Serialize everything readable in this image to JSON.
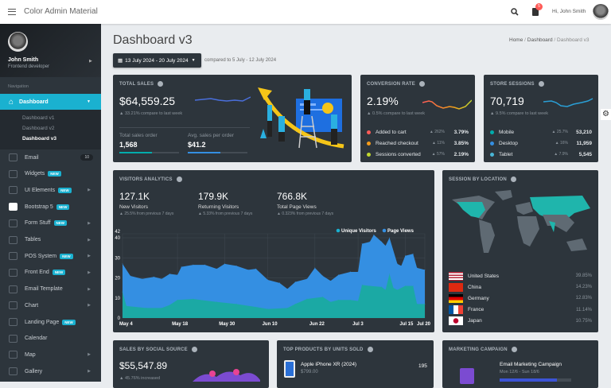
{
  "header": {
    "app_title": "Color Admin Material",
    "notification_count": "5",
    "greeting": "Hi, John Smith"
  },
  "sidebar": {
    "user_name": "John Smith",
    "user_role": "Frontend developer",
    "nav_label": "Navigation",
    "active": "Dashboard",
    "sub": [
      "Dashboard v1",
      "Dashboard v2",
      "Dashboard v3"
    ],
    "items": [
      {
        "label": "Email",
        "count": "10",
        "icon": "email-icon"
      },
      {
        "label": "Widgets",
        "badge": "NEW",
        "icon": "puzzle-icon"
      },
      {
        "label": "UI Elements",
        "badge": "NEW",
        "caret": true,
        "icon": "gem-icon"
      },
      {
        "label": "Bootstrap 5",
        "badge": "NEW",
        "icon": "bootstrap-icon"
      },
      {
        "label": "Form Stuff",
        "badge": "NEW",
        "caret": true,
        "icon": "file-icon"
      },
      {
        "label": "Tables",
        "caret": true,
        "icon": "table-icon"
      },
      {
        "label": "POS System",
        "badge": "NEW",
        "caret": true,
        "icon": "cash-register-icon"
      },
      {
        "label": "Front End",
        "badge": "NEW",
        "caret": true,
        "icon": "code-icon"
      },
      {
        "label": "Email Template",
        "caret": true,
        "icon": "envelope-icon"
      },
      {
        "label": "Chart",
        "caret": true,
        "icon": "chart-icon"
      },
      {
        "label": "Landing Page",
        "badge": "NEW",
        "icon": "user-icon"
      },
      {
        "label": "Calendar",
        "icon": "calendar-icon"
      },
      {
        "label": "Map",
        "caret": true,
        "icon": "map-marker-icon"
      },
      {
        "label": "Gallery",
        "caret": true,
        "icon": "image-icon"
      }
    ]
  },
  "page": {
    "title": "Dashboard v3",
    "breadcrumb": [
      "Home",
      "Dashboard",
      "Dashboard v3"
    ],
    "date_range": "13 July 2024 - 20 July 2024",
    "compare": "compared to 5 July - 12 July 2024"
  },
  "total_sales": {
    "title": "TOTAL SALES",
    "value": "$64,559.25",
    "change": "33.21% compare to last week",
    "orders_label": "Total sales order",
    "orders": "1,568",
    "orders_progress": 55,
    "avg_label": "Avg. sales per order",
    "avg": "$41.2",
    "avg_progress": 55
  },
  "conversion": {
    "title": "CONVERSION RATE",
    "value": "2.19%",
    "change": "0.5% compare to last week",
    "rows": [
      {
        "label": "Added to cart",
        "change": "262%",
        "value": "3.79%",
        "color": "#ff5b57"
      },
      {
        "label": "Reached checkout",
        "change": "11%",
        "value": "3.85%",
        "color": "#f59c1a"
      },
      {
        "label": "Sessions converted",
        "change": "57%",
        "value": "2.19%",
        "color": "#c1d82f"
      }
    ]
  },
  "sessions": {
    "title": "STORE SESSIONS",
    "value": "70,719",
    "change": "9.5% compare to last week",
    "rows": [
      {
        "label": "Mobile",
        "change": "25.7%",
        "value": "53,210",
        "color": "#00acac"
      },
      {
        "label": "Desktop",
        "change": "16%",
        "value": "11,959",
        "color": "#348fe2"
      },
      {
        "label": "Tablet",
        "change": "7.9%",
        "value": "5,545",
        "color": "#49b6d6"
      }
    ]
  },
  "visitors": {
    "title": "VISITORS ANALYTICS",
    "stats": [
      {
        "value": "127.1K",
        "label": "New Visitors",
        "change": "25.5% from previous 7 days"
      },
      {
        "value": "179.9K",
        "label": "Returning Visitors",
        "change": "5.33% from previous 7 days"
      },
      {
        "value": "766.8K",
        "label": "Total Page Views",
        "change": "0.323% from previous 7 days"
      }
    ]
  },
  "chart_data": {
    "type": "area",
    "ylim": [
      0,
      42
    ],
    "yticks": [
      0,
      10,
      20,
      30,
      40,
      42
    ],
    "xticks": [
      "May 4",
      "May 18",
      "May 30",
      "Jun 10",
      "Jun 22",
      "Jul 3",
      "Jul 15",
      "Jul 20"
    ],
    "legend_placement": "top-right",
    "series": [
      {
        "name": "Page Views",
        "color": "#348fe2",
        "points": [
          [
            "2024-05-04",
            27
          ],
          [
            "2024-05-06",
            21
          ],
          [
            "2024-05-09",
            19.5
          ],
          [
            "2024-05-12",
            20.5
          ],
          [
            "2024-05-14",
            19.5
          ],
          [
            "2024-05-16",
            22
          ],
          [
            "2024-05-18",
            21.5
          ],
          [
            "2024-05-19",
            25.5
          ],
          [
            "2024-05-22",
            26.5
          ],
          [
            "2024-05-25",
            26.5
          ],
          [
            "2024-05-28",
            24.5
          ],
          [
            "2024-05-30",
            27
          ],
          [
            "2024-06-02",
            26
          ],
          [
            "2024-06-05",
            24
          ],
          [
            "2024-06-07",
            24.5
          ],
          [
            "2024-06-10",
            19
          ],
          [
            "2024-06-13",
            17.5
          ],
          [
            "2024-06-15",
            14.5
          ],
          [
            "2024-06-17",
            18
          ],
          [
            "2024-06-20",
            19.5
          ],
          [
            "2024-06-22",
            25
          ],
          [
            "2024-06-24",
            21
          ],
          [
            "2024-06-26",
            18.5
          ],
          [
            "2024-06-28",
            21.5
          ],
          [
            "2024-07-01",
            23
          ],
          [
            "2024-07-03",
            23
          ],
          [
            "2024-07-04",
            37
          ],
          [
            "2024-07-06",
            38
          ],
          [
            "2024-07-07",
            41.5
          ],
          [
            "2024-07-09",
            38
          ],
          [
            "2024-07-10",
            36
          ],
          [
            "2024-07-11",
            40
          ],
          [
            "2024-07-13",
            27
          ],
          [
            "2024-07-14",
            26
          ],
          [
            "2024-07-15",
            31
          ],
          [
            "2024-07-17",
            32
          ],
          [
            "2024-07-18",
            25
          ],
          [
            "2024-07-20",
            24
          ]
        ]
      },
      {
        "name": "Unique Visitors",
        "color": "#1ba9a4",
        "points": [
          [
            "2024-05-04",
            13
          ],
          [
            "2024-05-05",
            6
          ],
          [
            "2024-05-10",
            5
          ],
          [
            "2024-05-14",
            5
          ],
          [
            "2024-05-16",
            6.5
          ],
          [
            "2024-05-18",
            9
          ],
          [
            "2024-05-22",
            9.5
          ],
          [
            "2024-05-28",
            8
          ],
          [
            "2024-06-02",
            7
          ],
          [
            "2024-06-07",
            5.5
          ],
          [
            "2024-06-10",
            4.5
          ],
          [
            "2024-06-15",
            5
          ],
          [
            "2024-06-17",
            7
          ],
          [
            "2024-06-20",
            9.5
          ],
          [
            "2024-06-24",
            10.5
          ],
          [
            "2024-06-26",
            8
          ],
          [
            "2024-06-28",
            9
          ],
          [
            "2024-07-01",
            9
          ],
          [
            "2024-07-03",
            8.5
          ],
          [
            "2024-07-04",
            16.5
          ],
          [
            "2024-07-06",
            16
          ],
          [
            "2024-07-09",
            15.5
          ],
          [
            "2024-07-10",
            14
          ],
          [
            "2024-07-11",
            22
          ],
          [
            "2024-07-12",
            15
          ],
          [
            "2024-07-13",
            14
          ],
          [
            "2024-07-15",
            16
          ],
          [
            "2024-07-17",
            16
          ],
          [
            "2024-07-18",
            7
          ],
          [
            "2024-07-20",
            7
          ]
        ]
      }
    ],
    "legend": [
      "Unique Visitors",
      "Page Views"
    ]
  },
  "location": {
    "title": "SESSION BY LOCATION",
    "countries": [
      {
        "name": "United States",
        "pct": "39.85%",
        "flag": "us"
      },
      {
        "name": "China",
        "pct": "14.23%",
        "flag": "cn"
      },
      {
        "name": "Germany",
        "pct": "12.83%",
        "flag": "de"
      },
      {
        "name": "France",
        "pct": "11.14%",
        "flag": "fr"
      },
      {
        "name": "Japan",
        "pct": "10.75%",
        "flag": "jp"
      }
    ],
    "highlight_color": "#1fb5ac"
  },
  "social": {
    "title": "SALES BY SOCIAL SOURCE",
    "value": "$55,547.89",
    "change": "45.76% increased"
  },
  "products": {
    "title": "TOP PRODUCTS BY UNITS SOLD",
    "items": [
      {
        "name": "Apple iPhone XR (2024)",
        "price": "$799.00",
        "units": "195",
        "units_label": "sold"
      }
    ]
  },
  "marketing": {
    "title": "MARKETING CAMPAIGN",
    "name": "Email Marketing Campaign",
    "dates": "Mon 12/6 - Sun 18/6",
    "progress": 80
  }
}
